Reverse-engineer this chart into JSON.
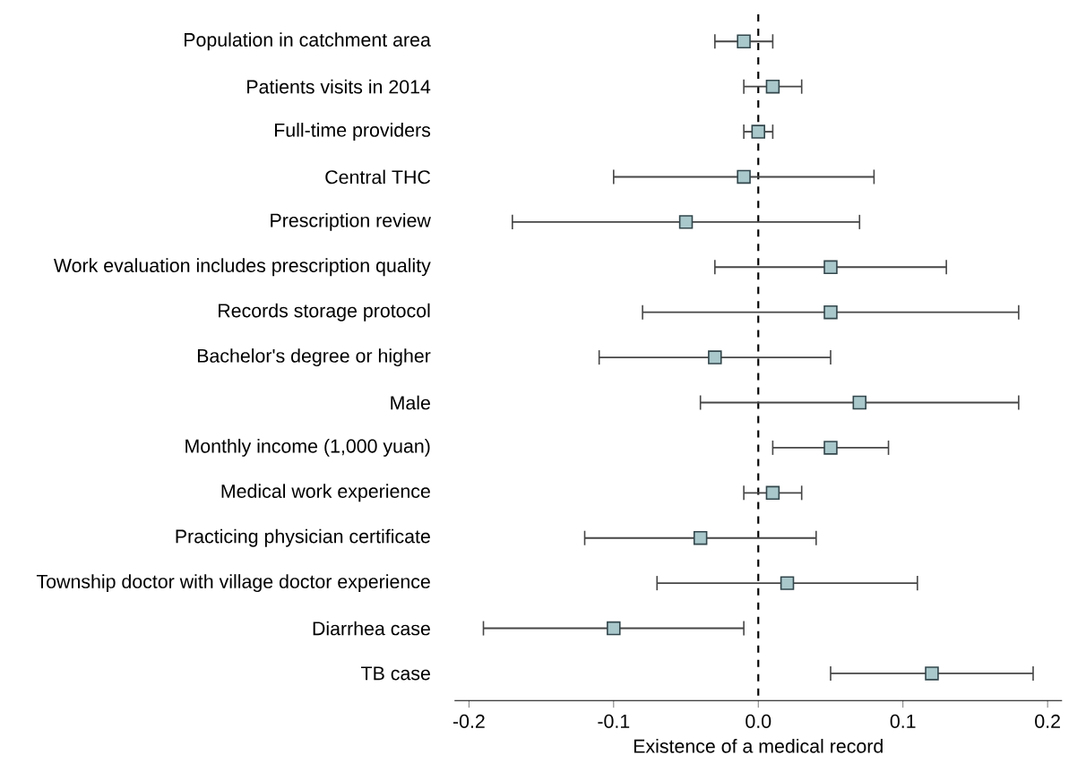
{
  "chart_data": {
    "type": "scatter",
    "orientation": "horizontal",
    "xlabel": "Existence of a medical record",
    "categories": [
      "Population in catchment area",
      "Patients visits in 2014",
      "Full-time providers",
      "Central THC",
      "Prescription review",
      "Work evaluation includes prescription quality",
      "Records storage protocol",
      "Bachelor's degree or higher",
      "Male",
      "Monthly income (1,000 yuan)",
      "Medical work experience",
      "Practicing physician certificate",
      "Township doctor with village doctor experience",
      "Diarrhea case",
      "TB case"
    ],
    "values": [
      -0.01,
      0.01,
      0.0,
      -0.01,
      -0.05,
      0.05,
      0.05,
      -0.03,
      0.07,
      0.05,
      0.01,
      -0.04,
      0.02,
      -0.1,
      0.12
    ],
    "errors": [
      [
        -0.03,
        0.01
      ],
      [
        -0.01,
        0.03
      ],
      [
        -0.01,
        0.01
      ],
      [
        -0.1,
        0.08
      ],
      [
        -0.17,
        0.07
      ],
      [
        -0.03,
        0.13
      ],
      [
        -0.08,
        0.18
      ],
      [
        -0.11,
        0.05
      ],
      [
        -0.04,
        0.18
      ],
      [
        0.01,
        0.09
      ],
      [
        -0.01,
        0.03
      ],
      [
        -0.12,
        0.04
      ],
      [
        -0.07,
        0.11
      ],
      [
        -0.19,
        -0.01
      ],
      [
        0.05,
        0.19
      ]
    ],
    "color": "#a9c8cc",
    "marker": "square",
    "xlim": [
      -0.21,
      0.21
    ],
    "xticks": [
      -0.2,
      -0.1,
      {
        "value": 0,
        "label": "0.0"
      },
      0.1,
      0.2
    ],
    "ref_lines": [
      {
        "axis": "x",
        "value": 0,
        "line_style": "dashed",
        "color": "#000000"
      }
    ]
  }
}
